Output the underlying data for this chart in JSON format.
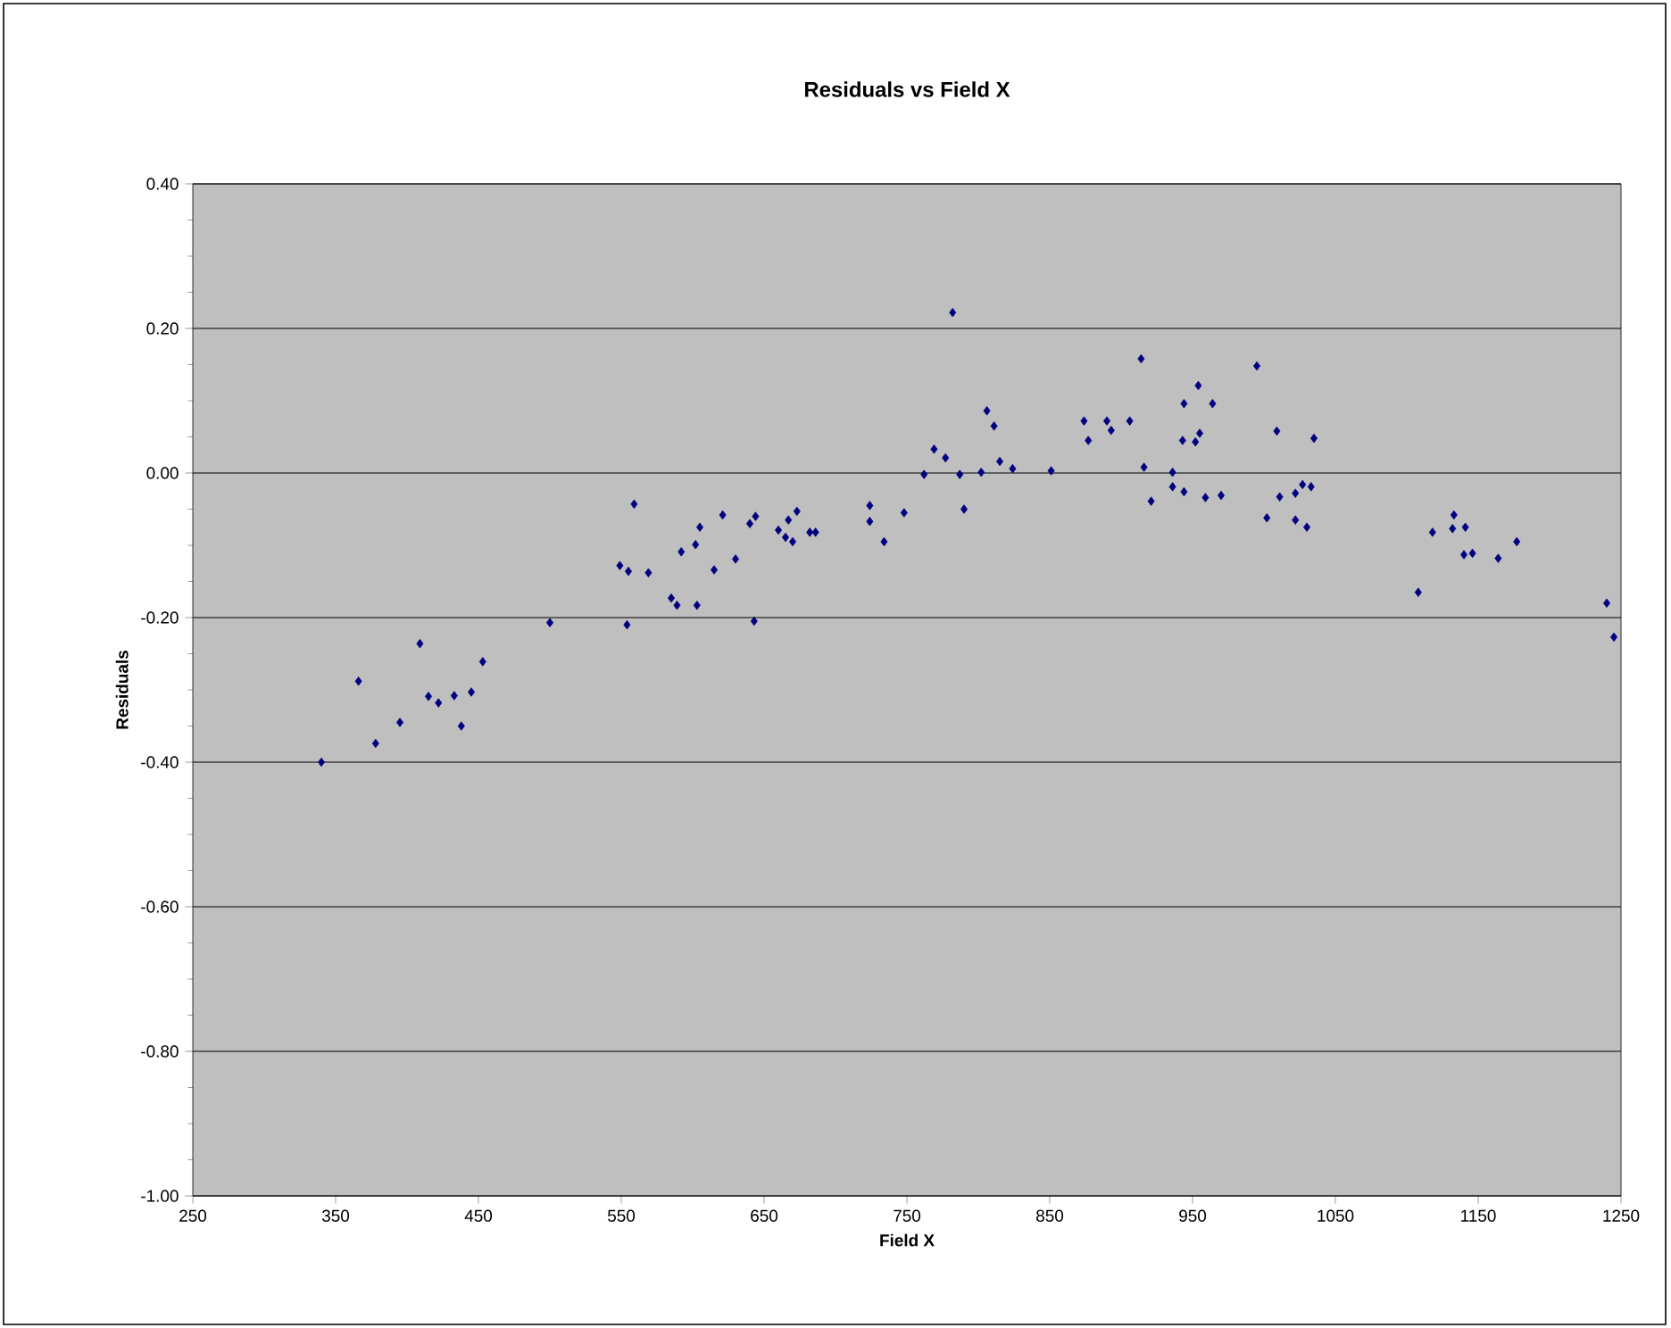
{
  "chart_data": {
    "type": "scatter",
    "title": "Residuals vs Field X",
    "xlabel": "Field X",
    "ylabel": "Residuals",
    "xlim": [
      250,
      1250
    ],
    "xticks": [
      {
        "value": 250,
        "label": "250"
      },
      {
        "value": 350,
        "label": "350"
      },
      {
        "value": 450,
        "label": "450"
      },
      {
        "value": 550,
        "label": "550"
      },
      {
        "value": 650,
        "label": "650"
      },
      {
        "value": 750,
        "label": "750"
      },
      {
        "value": 850,
        "label": "850"
      },
      {
        "value": 950,
        "label": "950"
      },
      {
        "value": 1050,
        "label": "1050"
      },
      {
        "value": 1150,
        "label": "1150"
      },
      {
        "value": 1250,
        "label": "1250"
      }
    ],
    "ylim": [
      -1.0,
      0.4
    ],
    "yticks": [
      {
        "value": -1.0,
        "label": "-1.00"
      },
      {
        "value": -0.8,
        "label": "-0.80"
      },
      {
        "value": -0.6,
        "label": "-0.60"
      },
      {
        "value": -0.4,
        "label": "-0.40"
      },
      {
        "value": -0.2,
        "label": "-0.20"
      },
      {
        "value": 0,
        "label": "0.00"
      },
      {
        "value": 0.2,
        "label": "0.20"
      },
      {
        "value": 0.4,
        "label": "0.40"
      }
    ],
    "grid": "y",
    "marker": "diamond",
    "series": [
      {
        "color": "#000080",
        "x": [
          340,
          366,
          378,
          395,
          409,
          415,
          422,
          433,
          438,
          445,
          453,
          500,
          549,
          555,
          554,
          559,
          569,
          585,
          589,
          592,
          603,
          602,
          605,
          621,
          615,
          630,
          643,
          640,
          644,
          660,
          667,
          665,
          670,
          673,
          682,
          686,
          724,
          724,
          734,
          748,
          762,
          769,
          777,
          787,
          790,
          802,
          811,
          815,
          824,
          851,
          877,
          893,
          916,
          921,
          936,
          936,
          944,
          943,
          952,
          955,
          959,
          970,
          995,
          1009,
          1035,
          1002,
          1011,
          1022,
          1027,
          1033,
          1022,
          1030,
          1118,
          1133,
          1132,
          1141,
          1177,
          1146,
          782,
          806,
          874,
          890,
          906,
          914,
          944,
          954,
          964,
          1108,
          1140,
          1164,
          1240,
          1245
        ],
        "values": [
          -0.4,
          -0.288,
          -0.374,
          -0.345,
          -0.236,
          -0.309,
          -0.318,
          -0.308,
          -0.35,
          -0.303,
          -0.261,
          -0.207,
          -0.128,
          -0.136,
          -0.21,
          -0.043,
          -0.138,
          -0.173,
          -0.183,
          -0.109,
          -0.183,
          -0.099,
          -0.075,
          -0.058,
          -0.134,
          -0.119,
          -0.205,
          -0.07,
          -0.06,
          -0.079,
          -0.065,
          -0.089,
          -0.095,
          -0.053,
          -0.082,
          -0.082,
          -0.045,
          -0.067,
          -0.095,
          -0.055,
          -0.002,
          0.033,
          0.021,
          -0.002,
          -0.05,
          0.001,
          0.065,
          0.016,
          0.006,
          0.003,
          0.045,
          0.059,
          0.008,
          -0.039,
          0.001,
          -0.019,
          -0.026,
          0.045,
          0.043,
          0.055,
          -0.034,
          -0.031,
          0.148,
          0.058,
          0.048,
          -0.062,
          -0.033,
          -0.028,
          -0.016,
          -0.019,
          -0.065,
          -0.075,
          -0.082,
          -0.058,
          -0.077,
          -0.075,
          -0.095,
          -0.111,
          0.222,
          0.086,
          0.072,
          0.072,
          0.072,
          0.158,
          0.096,
          0.121,
          0.096,
          -0.165,
          -0.113,
          -0.118,
          -0.18,
          -0.227
        ]
      }
    ]
  }
}
